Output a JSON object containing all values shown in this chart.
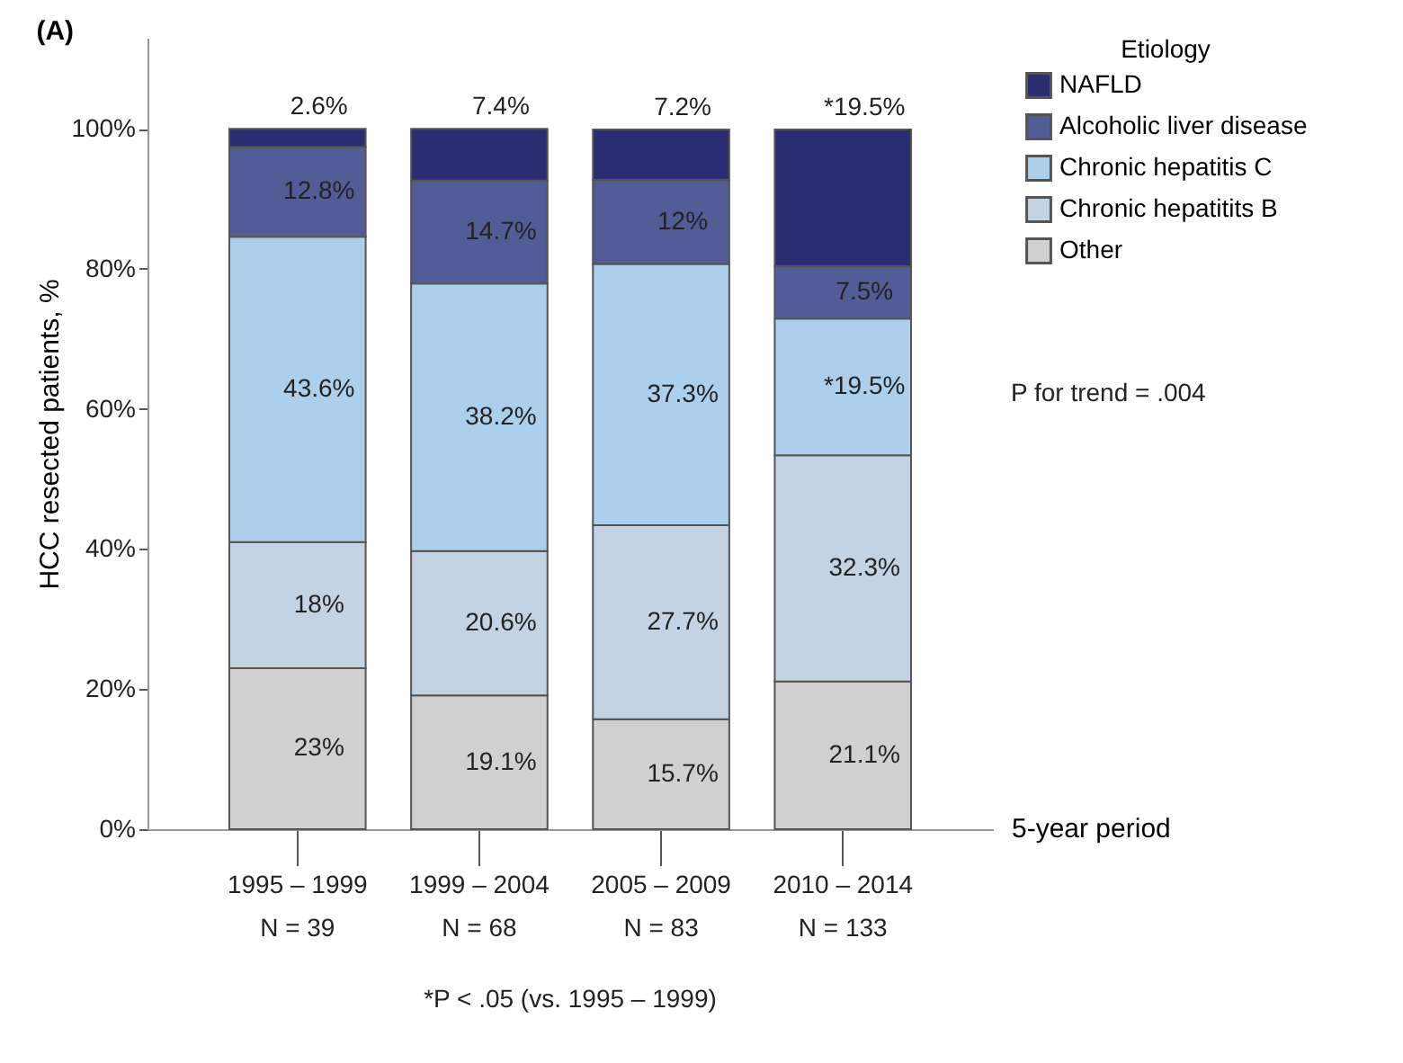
{
  "chart_data": {
    "type": "bar",
    "stacked": true,
    "title": "(A)",
    "ylabel": "HCC resected patients, %",
    "xlabel": "5-year period",
    "legend_title": "Etiology",
    "legend": "top right",
    "categories": [
      "1995 – 1999\nN = 39",
      "1999 – 2004\nN = 68",
      "2005 – 2009\nN = 83",
      "2010 – 2014\nN = 133"
    ],
    "series": [
      {
        "name": "Other",
        "color": "#d0d0d0",
        "values": [
          23,
          19.1,
          15.7,
          21.1
        ],
        "value_labels": [
          "23%",
          "19.1%",
          "15.7%",
          "21.1%"
        ]
      },
      {
        "name": "Chronic hepatitits B",
        "color": "#c3d3e3",
        "values": [
          18,
          20.6,
          27.7,
          32.3
        ],
        "value_labels": [
          "18%",
          "20.6%",
          "27.7%",
          "32.3%"
        ]
      },
      {
        "name": "Chronic hepatitis C",
        "color": "#acd0ec",
        "values": [
          43.6,
          38.2,
          37.3,
          19.5
        ],
        "value_labels": [
          "43.6%",
          "38.2%",
          "37.3%",
          "*19.5%"
        ]
      },
      {
        "name": "Alcoholic liver disease",
        "color": "#525c96",
        "values": [
          12.8,
          14.7,
          12,
          7.5
        ],
        "value_labels": [
          "12.8%",
          "14.7%",
          "12%",
          "7.5%"
        ]
      },
      {
        "name": "NAFLD",
        "color": "#2a2d72",
        "values": [
          2.6,
          7.4,
          7.2,
          19.5
        ],
        "value_labels": [
          "2.6%",
          "7.4%",
          "7.2%",
          "*19.5%"
        ]
      }
    ],
    "ylim": [
      0,
      113
    ],
    "yticks": [
      {
        "value": 0,
        "label": "0%"
      },
      {
        "value": 20,
        "label": "20%"
      },
      {
        "value": 40,
        "label": "40%"
      },
      {
        "value": 60,
        "label": "60%"
      },
      {
        "value": 80,
        "label": "80%"
      },
      {
        "value": 100,
        "label": "100%"
      }
    ],
    "annotations": [
      "P for trend = .004",
      "*P < .05 (vs. 1995 – 1999)"
    ]
  }
}
